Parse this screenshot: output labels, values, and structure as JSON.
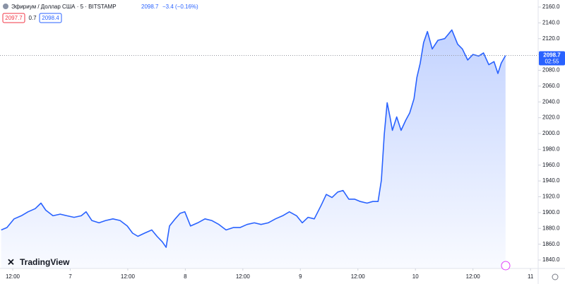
{
  "header": {
    "symbol": "Эфириум / Доллар США · 5 · BITSTAMP",
    "last": "2098.7",
    "change": "−3.4 (−0.16%)",
    "bid": "2097.7",
    "spread": "0.7",
    "ask": "2098.4",
    "brand": "TradingView"
  },
  "chart_data": {
    "type": "area",
    "color": "#2962ff",
    "grid": false,
    "x": [
      -14.4,
      -13.2,
      -11.7,
      -10.2,
      -8.8,
      -7.3,
      -6.1,
      -5.1,
      -3.6,
      -2.1,
      -0.7,
      0.8,
      2.3,
      3.3,
      4.5,
      6.0,
      7.4,
      8.9,
      10.4,
      11.9,
      13.0,
      14.1,
      15.5,
      17.0,
      18.1,
      19.2,
      20.0,
      20.7,
      21.9,
      22.9,
      23.9,
      25.1,
      26.6,
      28.1,
      29.5,
      31.0,
      32.5,
      34.0,
      35.4,
      36.9,
      38.4,
      39.8,
      41.3,
      42.8,
      44.3,
      45.7,
      47.2,
      48.4,
      49.6,
      50.9,
      52.4,
      53.4,
      54.6,
      55.8,
      56.9,
      58.1,
      59.3,
      60.5,
      61.9,
      63.1,
      64.2,
      64.9,
      65.5,
      66.1,
      66.7,
      67.2,
      68.1,
      69.0,
      70.0,
      70.8,
      71.7,
      72.3,
      73.0,
      73.7,
      74.5,
      75.5,
      76.7,
      78.1,
      79.6,
      80.8,
      81.8,
      82.9,
      84.0,
      85.2,
      86.2,
      87.3,
      88.4,
      89.2,
      89.9,
      90.8
    ],
    "values": [
      1878,
      1881,
      1892,
      1896,
      1901,
      1905,
      1912,
      1903,
      1896,
      1898,
      1896,
      1894,
      1896,
      1901,
      1890,
      1887,
      1890,
      1892,
      1890,
      1883,
      1874,
      1870,
      1874,
      1878,
      1870,
      1863,
      1856,
      1883,
      1892,
      1899,
      1901,
      1883,
      1887,
      1892,
      1890,
      1885,
      1878,
      1881,
      1881,
      1885,
      1887,
      1885,
      1887,
      1892,
      1896,
      1901,
      1896,
      1887,
      1894,
      1892,
      1910,
      1923,
      1919,
      1926,
      1928,
      1917,
      1917,
      1914,
      1912,
      1914,
      1914,
      1941,
      1999,
      2039,
      2021,
      2004,
      2021,
      2004,
      2017,
      2026,
      2044,
      2071,
      2089,
      2115,
      2129,
      2107,
      2118,
      2120,
      2131,
      2113,
      2107,
      2093,
      2100,
      2098,
      2102,
      2087,
      2091,
      2076,
      2089,
      2098.7
    ],
    "xlim": [
      -14.65,
      97.6
    ],
    "xticks": [
      {
        "value": -12,
        "label": "12:00"
      },
      {
        "value": 0,
        "label": "7"
      },
      {
        "value": 12,
        "label": "12:00"
      },
      {
        "value": 24,
        "label": "8"
      },
      {
        "value": 36,
        "label": "12:00"
      },
      {
        "value": 48,
        "label": "9"
      },
      {
        "value": 60,
        "label": "12:00"
      },
      {
        "value": 72,
        "label": "10"
      },
      {
        "value": 84,
        "label": "12:00"
      },
      {
        "value": 96,
        "label": "11"
      }
    ],
    "ylim": [
      1829.3,
      2168.9
    ],
    "yticks": [
      {
        "value": 1840,
        "label": "1840.0"
      },
      {
        "value": 1860,
        "label": "1860.0"
      },
      {
        "value": 1880,
        "label": "1880.0"
      },
      {
        "value": 1900,
        "label": "1900.0"
      },
      {
        "value": 1920,
        "label": "1920.0"
      },
      {
        "value": 1940,
        "label": "1940.0"
      },
      {
        "value": 1960,
        "label": "1960.0"
      },
      {
        "value": 1980,
        "label": "1980.0"
      },
      {
        "value": 2000,
        "label": "2000.0"
      },
      {
        "value": 2020,
        "label": "2020.0"
      },
      {
        "value": 2040,
        "label": "2040.0"
      },
      {
        "value": 2060,
        "label": "2060.0"
      },
      {
        "value": 2080,
        "label": "2080.0"
      },
      {
        "value": 2100,
        "label": "2100.0"
      },
      {
        "value": 2120,
        "label": "2120.0"
      },
      {
        "value": 2140,
        "label": "2140.0"
      },
      {
        "value": 2160,
        "label": "2160.0"
      }
    ],
    "last_price": {
      "value": 2098.7,
      "label": "2098.7"
    },
    "countdown": "02:55"
  }
}
